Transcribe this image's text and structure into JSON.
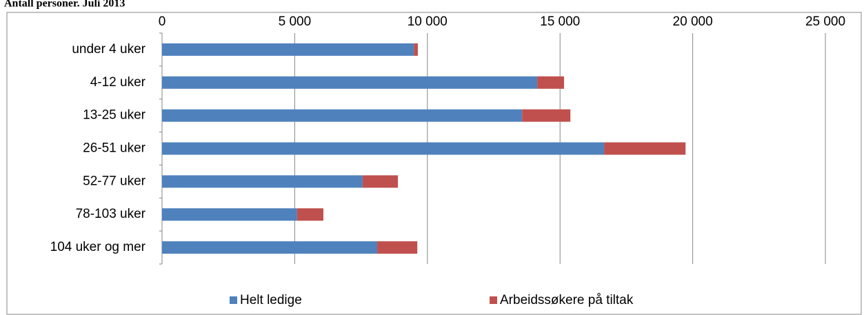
{
  "chart_data": {
    "type": "stacked-hbar",
    "title": "Antall personer. Juli 2013",
    "categories": [
      "under 4 uker",
      "4-12 uker",
      "13-25 uker",
      "26-51 uker",
      "52-77 uker",
      "78-103 uker",
      "104 uker og mer"
    ],
    "series": [
      {
        "name": "Helt ledige",
        "color": "#4f81bd",
        "values": [
          9490,
          14140,
          13570,
          16660,
          7560,
          5090,
          8110
        ]
      },
      {
        "name": "Arbeidssøkere på tiltak",
        "color": "#c0504d",
        "values": [
          150,
          1010,
          1820,
          3070,
          1330,
          990,
          1510
        ]
      }
    ],
    "xlim": [
      0,
      25000
    ],
    "xticks": [
      0,
      {
        "value": 5000,
        "label": "5 000"
      },
      {
        "value": 10000,
        "label": "10 000"
      },
      {
        "value": 15000,
        "label": "15 000"
      },
      {
        "value": 20000,
        "label": "20 000"
      },
      {
        "value": 25000,
        "label": "25 000"
      }
    ],
    "grid": true,
    "legend": "bottom"
  }
}
